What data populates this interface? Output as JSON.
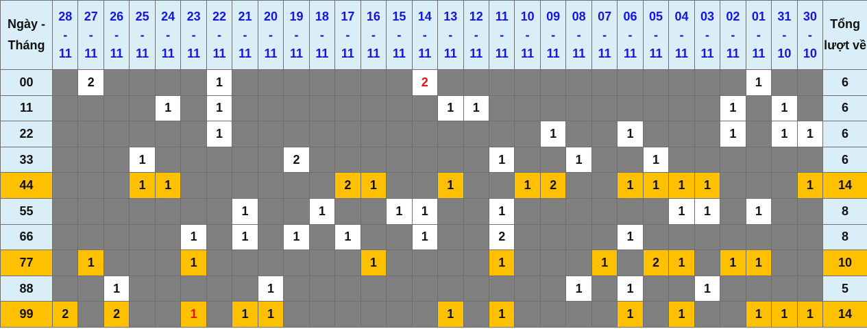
{
  "header": {
    "label": "Ngày - Tháng",
    "total_label": "Tổng lượt về"
  },
  "columns": [
    {
      "day": "28",
      "month": "11"
    },
    {
      "day": "27",
      "month": "11"
    },
    {
      "day": "26",
      "month": "11"
    },
    {
      "day": "25",
      "month": "11"
    },
    {
      "day": "24",
      "month": "11"
    },
    {
      "day": "23",
      "month": "11"
    },
    {
      "day": "22",
      "month": "11"
    },
    {
      "day": "21",
      "month": "11"
    },
    {
      "day": "20",
      "month": "11"
    },
    {
      "day": "19",
      "month": "11"
    },
    {
      "day": "18",
      "month": "11"
    },
    {
      "day": "17",
      "month": "11"
    },
    {
      "day": "16",
      "month": "11"
    },
    {
      "day": "15",
      "month": "11"
    },
    {
      "day": "14",
      "month": "11"
    },
    {
      "day": "13",
      "month": "11"
    },
    {
      "day": "12",
      "month": "11"
    },
    {
      "day": "11",
      "month": "11"
    },
    {
      "day": "10",
      "month": "11"
    },
    {
      "day": "09",
      "month": "11"
    },
    {
      "day": "08",
      "month": "11"
    },
    {
      "day": "07",
      "month": "11"
    },
    {
      "day": "06",
      "month": "11"
    },
    {
      "day": "05",
      "month": "11"
    },
    {
      "day": "04",
      "month": "11"
    },
    {
      "day": "03",
      "month": "11"
    },
    {
      "day": "02",
      "month": "11"
    },
    {
      "day": "01",
      "month": "11"
    },
    {
      "day": "31",
      "month": "10"
    },
    {
      "day": "30",
      "month": "10"
    }
  ],
  "colors": {
    "header_bg": "#daeef7",
    "empty": "#808080",
    "highlight": "#ffc000",
    "date_text": "#1414e6",
    "red_text": "#e81010"
  },
  "rows": [
    {
      "label": "00",
      "total": "6",
      "highlight": false,
      "red": [
        "14-11"
      ],
      "cells": [
        "",
        "2",
        "",
        "",
        "",
        "",
        "1",
        "",
        "",
        "",
        "",
        "",
        "",
        "",
        "2",
        "",
        "",
        "",
        "",
        "",
        "",
        "",
        "",
        "",
        "",
        "",
        "",
        "1",
        "",
        ""
      ]
    },
    {
      "label": "11",
      "total": "6",
      "highlight": false,
      "red": [],
      "cells": [
        "",
        "",
        "",
        "",
        "1",
        "",
        "1",
        "",
        "",
        "",
        "",
        "",
        "",
        "",
        "",
        "1",
        "1",
        "",
        "",
        "",
        "",
        "",
        "",
        "",
        "",
        "",
        "1",
        "",
        "1",
        ""
      ]
    },
    {
      "label": "22",
      "total": "6",
      "highlight": false,
      "red": [],
      "cells": [
        "",
        "",
        "",
        "",
        "",
        "",
        "1",
        "",
        "",
        "",
        "",
        "",
        "",
        "",
        "",
        "",
        "",
        "",
        "",
        "1",
        "",
        "",
        "1",
        "",
        "",
        "",
        "1",
        "",
        "1",
        "1"
      ]
    },
    {
      "label": "33",
      "total": "6",
      "highlight": false,
      "red": [],
      "cells": [
        "",
        "",
        "",
        "1",
        "",
        "",
        "",
        "",
        "",
        "2",
        "",
        "",
        "",
        "",
        "",
        "",
        "",
        "1",
        "",
        "",
        "1",
        "",
        "",
        "1",
        "",
        "",
        "",
        "",
        "",
        ""
      ]
    },
    {
      "label": "44",
      "total": "14",
      "highlight": true,
      "red": [],
      "cells": [
        "",
        "",
        "",
        "1",
        "1",
        "",
        "",
        "",
        "",
        "",
        "",
        "2",
        "1",
        "",
        "",
        "1",
        "",
        "",
        "1",
        "2",
        "",
        "",
        "1",
        "1",
        "1",
        "1",
        "",
        "",
        "",
        "1"
      ]
    },
    {
      "label": "55",
      "total": "8",
      "highlight": false,
      "red": [],
      "cells": [
        "",
        "",
        "",
        "",
        "",
        "",
        "",
        "1",
        "",
        "",
        "1",
        "",
        "",
        "1",
        "1",
        "",
        "",
        "1",
        "",
        "",
        "",
        "",
        "",
        "",
        "1",
        "1",
        "",
        "1",
        "",
        ""
      ]
    },
    {
      "label": "66",
      "total": "8",
      "highlight": false,
      "red": [],
      "cells": [
        "",
        "",
        "",
        "",
        "",
        "1",
        "",
        "1",
        "",
        "1",
        "",
        "1",
        "",
        "",
        "1",
        "",
        "",
        "2",
        "",
        "",
        "",
        "",
        "1",
        "",
        "",
        "",
        "",
        "",
        "",
        ""
      ]
    },
    {
      "label": "77",
      "total": "10",
      "highlight": true,
      "red": [],
      "cells": [
        "",
        "1",
        "",
        "",
        "",
        "1",
        "",
        "",
        "",
        "",
        "",
        "",
        "1",
        "",
        "",
        "",
        "",
        "1",
        "",
        "",
        "",
        "1",
        "",
        "2",
        "1",
        "",
        "1",
        "1",
        "",
        ""
      ]
    },
    {
      "label": "88",
      "total": "5",
      "highlight": false,
      "red": [],
      "cells": [
        "",
        "",
        "1",
        "",
        "",
        "",
        "",
        "",
        "1",
        "",
        "",
        "",
        "",
        "",
        "",
        "",
        "",
        "",
        "",
        "",
        "1",
        "",
        "1",
        "",
        "",
        "1",
        "",
        "",
        "",
        ""
      ]
    },
    {
      "label": "99",
      "total": "14",
      "highlight": true,
      "red": [
        "23-11"
      ],
      "cells": [
        "2",
        "",
        "2",
        "",
        "",
        "1",
        "",
        "1",
        "1",
        "",
        "",
        "",
        "",
        "",
        "",
        "1",
        "",
        "1",
        "",
        "",
        "",
        "",
        "1",
        "",
        "1",
        "",
        "",
        "1",
        "1",
        "1"
      ]
    }
  ]
}
